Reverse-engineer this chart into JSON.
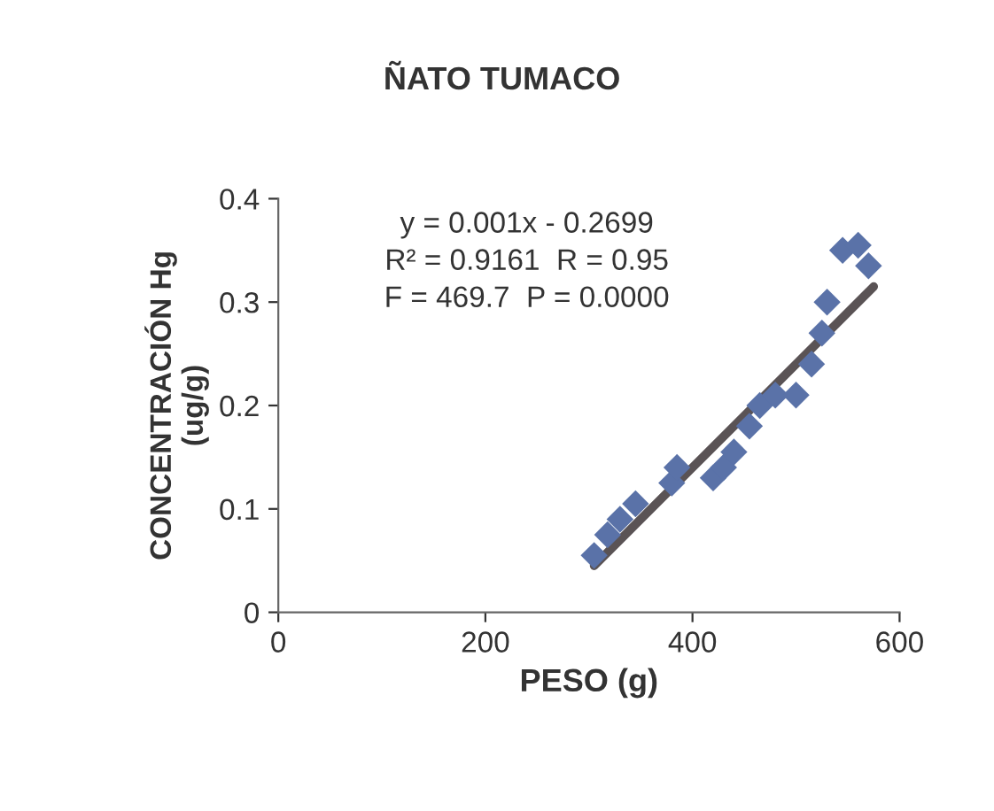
{
  "chart_data": {
    "type": "scatter",
    "title": "ÑATO TUMACO",
    "xlabel": "PESO (g)",
    "ylabel": "CONCENTRACIÓN Hg\n(ug/g)",
    "xlim": [
      0,
      600
    ],
    "xticks": [
      0,
      200,
      400,
      600
    ],
    "ylim": [
      0,
      0.4
    ],
    "yticks": [
      0,
      0.1,
      0.2,
      0.3,
      0.4
    ],
    "grid": false,
    "legend": false,
    "annotations": [
      "y = 0.001x - 0.2699",
      "R² = 0.9161  R = 0.95",
      "F = 469.7  P = 0.0000"
    ],
    "series": [
      {
        "color": "#5a72a8",
        "marker": "diamond",
        "x": [
          305,
          318,
          330,
          345,
          380,
          385,
          420,
          430,
          440,
          455,
          465,
          480,
          500,
          515,
          525,
          530,
          545,
          560,
          570
        ],
        "values": [
          0.055,
          0.075,
          0.09,
          0.105,
          0.125,
          0.14,
          0.13,
          0.14,
          0.155,
          0.18,
          0.2,
          0.21,
          0.21,
          0.24,
          0.27,
          0.3,
          0.35,
          0.355,
          0.335
        ]
      },
      {
        "type": "line",
        "marker": "none",
        "color": "#5a5355",
        "x": [
          305,
          575
        ],
        "values": [
          0.045,
          0.315
        ]
      }
    ]
  }
}
